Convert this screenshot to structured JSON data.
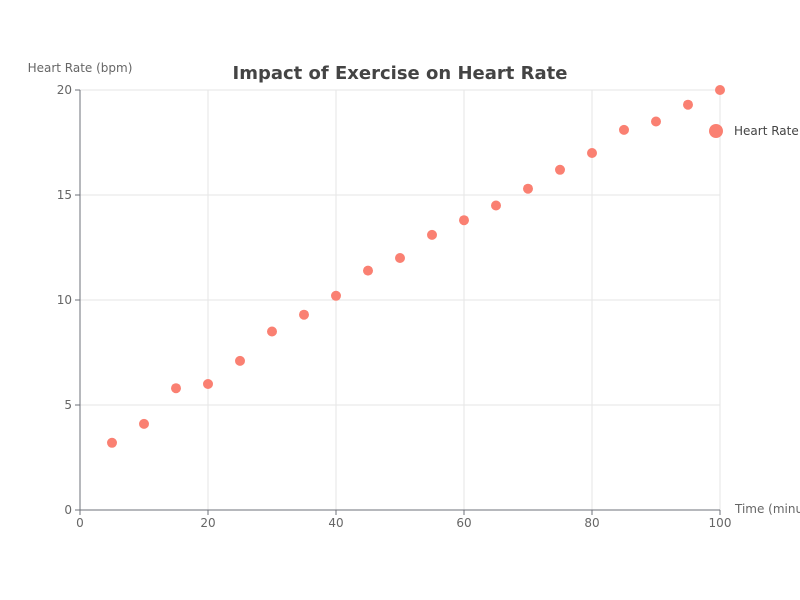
{
  "chart_data": {
    "type": "scatter",
    "title": "Impact of Exercise on Heart Rate",
    "xlabel": "Time (minutes)",
    "ylabel": "Heart Rate (bpm)",
    "xlim": [
      0,
      100
    ],
    "ylim": [
      0,
      20
    ],
    "x_ticks": [
      0,
      20,
      40,
      60,
      80,
      100
    ],
    "y_ticks": [
      0,
      5,
      10,
      15,
      20
    ],
    "grid": true,
    "legend_position": "right",
    "series": [
      {
        "name": "Heart Rate",
        "color": "#fa8072",
        "x": [
          5,
          10,
          15,
          20,
          25,
          30,
          35,
          40,
          45,
          50,
          55,
          60,
          65,
          70,
          75,
          80,
          85,
          90,
          95,
          100
        ],
        "y": [
          3.2,
          4.1,
          5.8,
          6.0,
          7.1,
          8.5,
          9.3,
          10.2,
          11.4,
          12.0,
          13.1,
          13.8,
          14.5,
          15.3,
          16.2,
          17.0,
          18.1,
          18.5,
          19.3,
          20.0
        ]
      }
    ]
  }
}
